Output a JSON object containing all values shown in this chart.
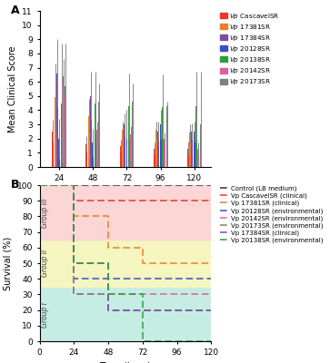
{
  "strains": [
    "CascavelSR",
    "17381SR",
    "17384SR",
    "20128SR",
    "20138SR",
    "20142SR",
    "20173SR"
  ],
  "colors": [
    "#e8372b",
    "#f07b2c",
    "#7b4fa0",
    "#3a4fc7",
    "#2d9f3c",
    "#e060a0",
    "#808080"
  ],
  "time_points": [
    24,
    48,
    72,
    96,
    120
  ],
  "bar_data": {
    "CascavelSR": [
      2.5,
      1.6,
      1.5,
      1.3,
      1.3
    ],
    "17381SR": [
      4.9,
      3.6,
      2.6,
      2.6,
      2.4
    ],
    "17384SR": [
      6.6,
      5.0,
      3.0,
      2.5,
      2.5
    ],
    "20128SR": [
      2.0,
      1.7,
      3.0,
      3.0,
      2.5
    ],
    "20138SR": [
      4.5,
      4.5,
      4.3,
      4.2,
      4.3
    ],
    "20142SR": [
      6.4,
      2.6,
      2.3,
      2.0,
      1.3
    ],
    "20173SR": [
      5.7,
      4.6,
      4.6,
      4.3,
      3.0
    ]
  },
  "err_data": {
    "CascavelSR": [
      0.8,
      0.6,
      0.4,
      0.4,
      0.5
    ],
    "17381SR": [
      2.4,
      1.2,
      0.6,
      0.6,
      0.6
    ],
    "17384SR": [
      2.4,
      1.7,
      0.8,
      0.7,
      0.6
    ],
    "20128SR": [
      1.4,
      1.0,
      1.0,
      1.0,
      0.7
    ],
    "20138SR": [
      4.2,
      2.2,
      2.3,
      2.3,
      2.4
    ],
    "20142SR": [
      1.2,
      0.6,
      0.6,
      0.4,
      0.4
    ],
    "20173SR": [
      3.0,
      1.3,
      1.3,
      0.3,
      3.7
    ]
  },
  "survival_data": {
    "Control": {
      "times": [
        0,
        24,
        120
      ],
      "survival": [
        100,
        100,
        100
      ],
      "color": "#303030",
      "label": "Control (LB medium)"
    },
    "CascavelSR": {
      "times": [
        0,
        24,
        48,
        120
      ],
      "survival": [
        100,
        90,
        90,
        90
      ],
      "color": "#e8372b",
      "label": "Vp CascavelSR (clinical)"
    },
    "17381SR": {
      "times": [
        0,
        24,
        48,
        72,
        120
      ],
      "survival": [
        100,
        80,
        60,
        50,
        50
      ],
      "color": "#f07b2c",
      "label": "Vp 17381SR (clinical)"
    },
    "20128SR": {
      "times": [
        0,
        24,
        120
      ],
      "survival": [
        100,
        40,
        40
      ],
      "color": "#3a4fc7",
      "label": "Vp 20128SR (environmental)"
    },
    "20142SR": {
      "times": [
        0,
        24,
        120
      ],
      "survival": [
        100,
        30,
        30
      ],
      "color": "#e060a0",
      "label": "Vp 20142SR (environmental)"
    },
    "20173SR": {
      "times": [
        0,
        24,
        48,
        120
      ],
      "survival": [
        100,
        30,
        20,
        20
      ],
      "color": "#808080",
      "label": "Vp 20173SR (environmental)"
    },
    "17384SR": {
      "times": [
        0,
        24,
        48,
        120
      ],
      "survival": [
        100,
        50,
        20,
        20
      ],
      "color": "#7b4fa0",
      "label": "Vp 17384SR (clinical)"
    },
    "20138SR": {
      "times": [
        0,
        24,
        48,
        72,
        120
      ],
      "survival": [
        100,
        50,
        30,
        0,
        0
      ],
      "color": "#2d9f3c",
      "label": "Vp 20138SR (environmental)"
    }
  },
  "legend_order_B": [
    "Control",
    "CascavelSR",
    "17381SR",
    "20128SR",
    "20142SR",
    "20173SR",
    "17384SR",
    "20138SR"
  ],
  "group_regions": [
    {
      "ymin": 0,
      "ymax": 35,
      "color": "#c5ede4",
      "label": "Group I"
    },
    {
      "ymin": 35,
      "ymax": 65,
      "color": "#f5f5c0",
      "label": "Group II"
    },
    {
      "ymin": 65,
      "ymax": 100,
      "color": "#fcd5d5",
      "label": "Group III"
    }
  ]
}
